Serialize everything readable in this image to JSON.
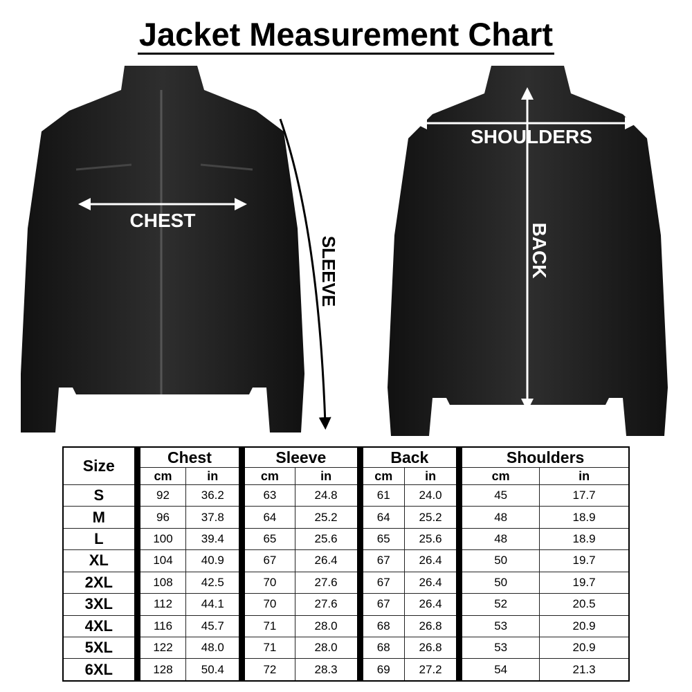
{
  "title": "Jacket Measurement Chart",
  "labels": {
    "chest": "CHEST",
    "sleeve": "SLEEVE",
    "shoulders": "SHOULDERS",
    "back": "BACK"
  },
  "table": {
    "size_header": "Size",
    "groups": [
      "Chest",
      "Sleeve",
      "Back",
      "Shoulders"
    ],
    "units": [
      "cm",
      "in"
    ],
    "rows": [
      {
        "size": "S",
        "values": [
          "92",
          "36.2",
          "63",
          "24.8",
          "61",
          "24.0",
          "45",
          "17.7"
        ]
      },
      {
        "size": "M",
        "values": [
          "96",
          "37.8",
          "64",
          "25.2",
          "64",
          "25.2",
          "48",
          "18.9"
        ]
      },
      {
        "size": "L",
        "values": [
          "100",
          "39.4",
          "65",
          "25.6",
          "65",
          "25.6",
          "48",
          "18.9"
        ]
      },
      {
        "size": "XL",
        "values": [
          "104",
          "40.9",
          "67",
          "26.4",
          "67",
          "26.4",
          "50",
          "19.7"
        ]
      },
      {
        "size": "2XL",
        "values": [
          "108",
          "42.5",
          "70",
          "27.6",
          "67",
          "26.4",
          "50",
          "19.7"
        ]
      },
      {
        "size": "3XL",
        "values": [
          "112",
          "44.1",
          "70",
          "27.6",
          "67",
          "26.4",
          "52",
          "20.5"
        ]
      },
      {
        "size": "4XL",
        "values": [
          "116",
          "45.7",
          "71",
          "28.0",
          "68",
          "26.8",
          "53",
          "20.9"
        ]
      },
      {
        "size": "5XL",
        "values": [
          "122",
          "48.0",
          "71",
          "28.0",
          "68",
          "26.8",
          "53",
          "20.9"
        ]
      },
      {
        "size": "6XL",
        "values": [
          "128",
          "50.4",
          "72",
          "28.3",
          "69",
          "27.2",
          "54",
          "21.3"
        ]
      }
    ]
  },
  "colors": {
    "jacket": "#1a1a1a",
    "arrow_on_jacket": "#ffffff",
    "sleeve_arrow": "#000000"
  }
}
